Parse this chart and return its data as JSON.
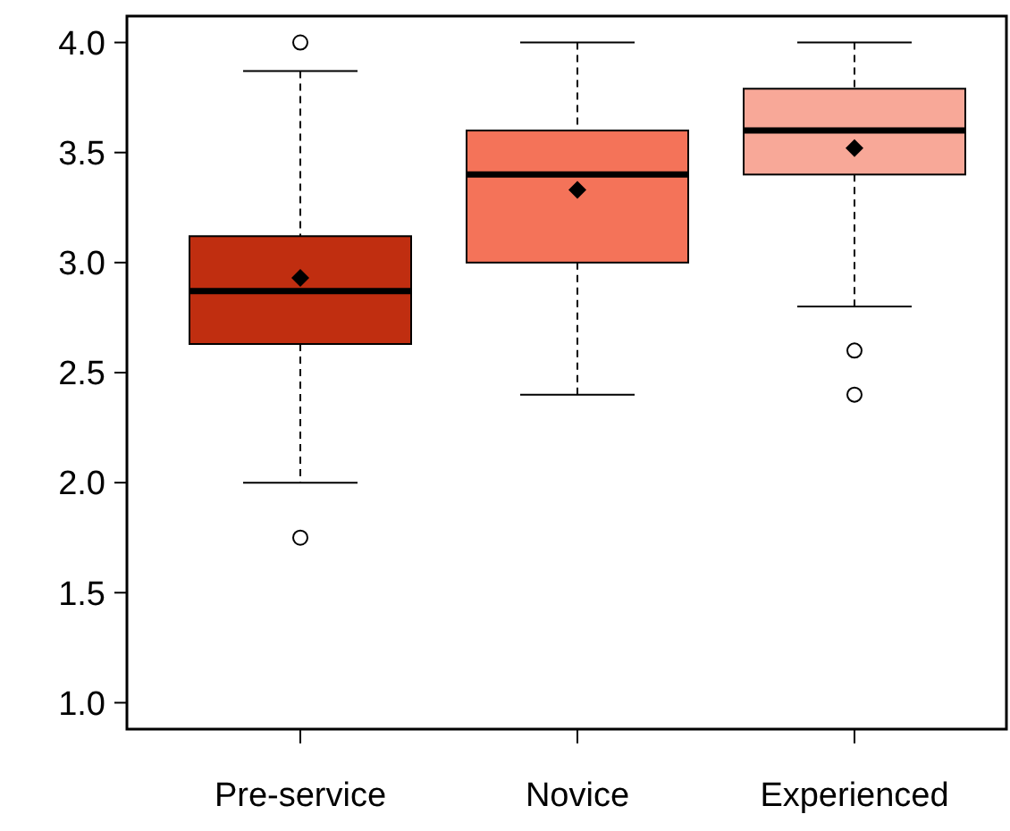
{
  "chart_data": {
    "type": "box",
    "categories": [
      "Pre-service",
      "Novice",
      "Experienced"
    ],
    "colors": [
      "#c02e10",
      "#f47359",
      "#f8a898"
    ],
    "boxes": [
      {
        "low": 2.0,
        "q1": 2.63,
        "median": 2.87,
        "q3": 3.12,
        "high": 3.87,
        "mean": 2.93,
        "outliers": [
          4.0,
          1.75
        ]
      },
      {
        "low": 2.4,
        "q1": 3.0,
        "median": 3.4,
        "q3": 3.6,
        "high": 4.0,
        "mean": 3.33
      },
      {
        "low": 2.8,
        "q1": 3.4,
        "median": 3.6,
        "q3": 3.79,
        "high": 4.0,
        "mean": 3.52,
        "outliers": [
          2.6,
          2.4
        ]
      }
    ],
    "ylim": [
      0.88,
      4.12
    ],
    "yticks": [
      {
        "value": 1,
        "label": "1.0"
      },
      {
        "value": 1.5,
        "label": "1.5"
      },
      {
        "value": 2,
        "label": "2.0"
      },
      {
        "value": 2.5,
        "label": "2.5"
      },
      {
        "value": 3,
        "label": "3.0"
      },
      {
        "value": 3.5,
        "label": "3.5"
      },
      {
        "value": 4,
        "label": "4.0"
      }
    ],
    "grid": false
  }
}
